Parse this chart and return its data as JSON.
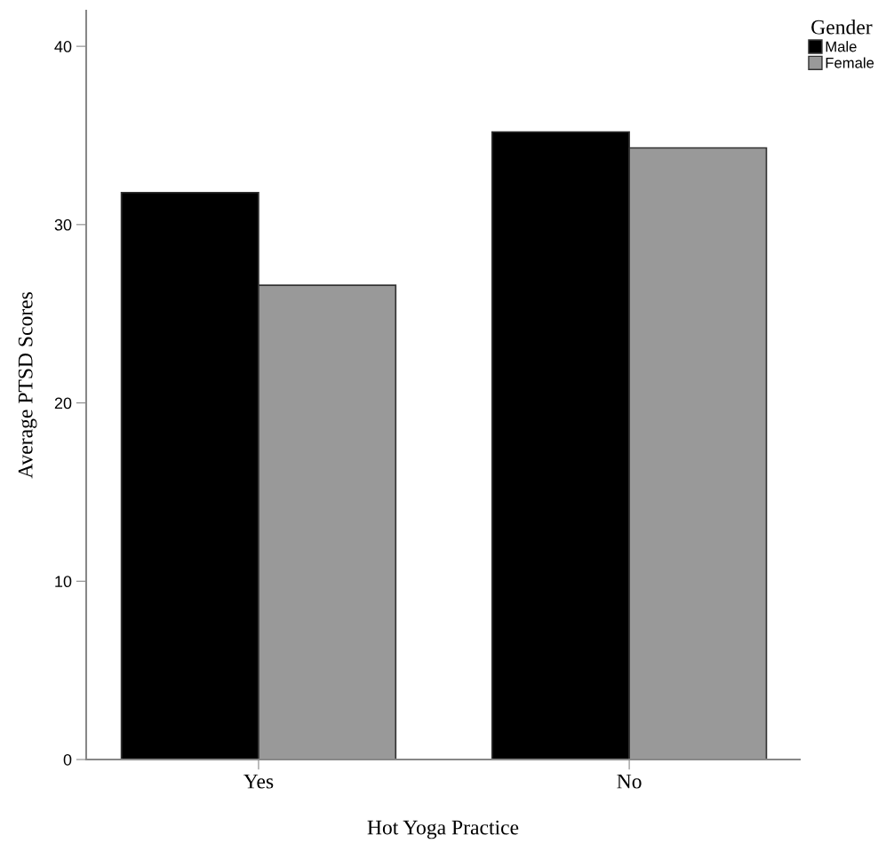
{
  "chart_data": {
    "type": "bar",
    "xlabel": "Hot Yoga Practice",
    "ylabel": "Average PTSD Scores",
    "legend_title": "Gender",
    "categories": [
      "Yes",
      "No"
    ],
    "series": [
      {
        "name": "Male",
        "color": "#000000",
        "values": [
          31.8,
          35.2
        ]
      },
      {
        "name": "Female",
        "color": "#999999",
        "values": [
          26.6,
          34.3
        ]
      }
    ],
    "ylim": [
      0,
      42
    ],
    "yticks": [
      0,
      10,
      20,
      30,
      40
    ],
    "grid": false,
    "legend": "top right"
  }
}
